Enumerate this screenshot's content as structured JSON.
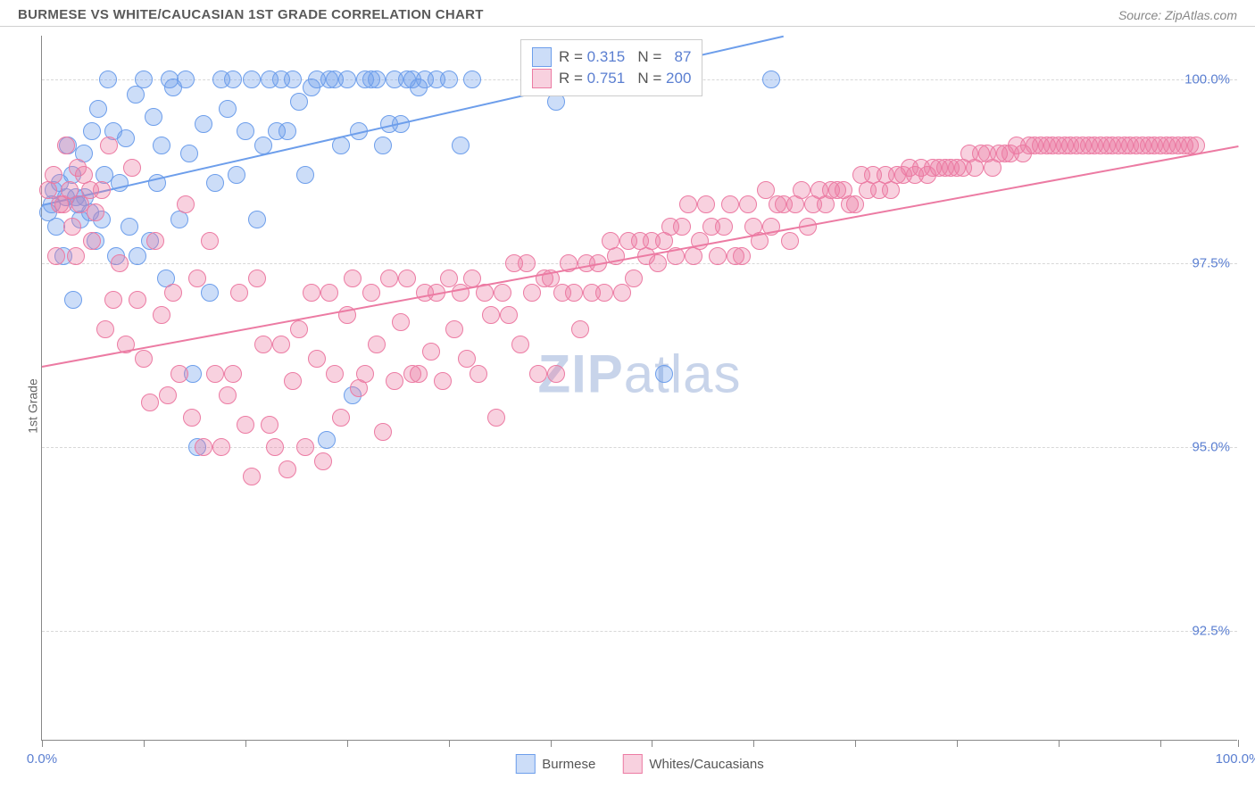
{
  "header": {
    "title": "BURMESE VS WHITE/CAUCASIAN 1ST GRADE CORRELATION CHART",
    "source": "Source: ZipAtlas.com"
  },
  "ylabel": "1st Grade",
  "watermark": {
    "part1": "ZIP",
    "part2": "atlas"
  },
  "chart": {
    "type": "scatter",
    "xlim": [
      0,
      100
    ],
    "ylim": [
      91,
      100.6
    ],
    "xtick_positions": [
      0,
      8.5,
      17,
      25.5,
      34,
      42.5,
      51,
      59.5,
      68,
      76.5,
      85,
      93.5,
      100
    ],
    "xtick_labels": {
      "0": "0.0%",
      "100": "100.0%"
    },
    "ytick_positions": [
      92.5,
      95.0,
      97.5,
      100.0
    ],
    "ytick_labels": [
      "92.5%",
      "95.0%",
      "97.5%",
      "100.0%"
    ],
    "grid_color": "#d8d8d8",
    "axis_color": "#888888",
    "background_color": "#ffffff",
    "label_color": "#5b7fd1",
    "marker_radius": 10,
    "marker_opacity": 0.45,
    "series": [
      {
        "name": "Burmese",
        "color": "#6d9eeb",
        "fill": "rgba(109,158,235,0.35)",
        "stroke": "#6d9eeb",
        "R": "0.315",
        "N": "87",
        "trend": {
          "x1": 0,
          "y1": 98.3,
          "x2": 62,
          "y2": 100.6
        },
        "points": [
          [
            0.5,
            98.2
          ],
          [
            0.8,
            98.3
          ],
          [
            1,
            98.5
          ],
          [
            1.2,
            98.0
          ],
          [
            1.5,
            98.6
          ],
          [
            1.8,
            97.6
          ],
          [
            2,
            98.4
          ],
          [
            2.2,
            99.1
          ],
          [
            2.5,
            98.7
          ],
          [
            2.6,
            97.0
          ],
          [
            2.8,
            98.4
          ],
          [
            3,
            98.3
          ],
          [
            3.2,
            98.1
          ],
          [
            3.5,
            99.0
          ],
          [
            3.6,
            98.4
          ],
          [
            4,
            98.2
          ],
          [
            4.2,
            99.3
          ],
          [
            4.5,
            97.8
          ],
          [
            4.7,
            99.6
          ],
          [
            5,
            98.1
          ],
          [
            5.2,
            98.7
          ],
          [
            5.5,
            100.0
          ],
          [
            6,
            99.3
          ],
          [
            6.2,
            97.6
          ],
          [
            6.5,
            98.6
          ],
          [
            7,
            99.2
          ],
          [
            7.3,
            98.0
          ],
          [
            7.8,
            99.8
          ],
          [
            8,
            97.6
          ],
          [
            8.5,
            100.0
          ],
          [
            9,
            97.8
          ],
          [
            9.3,
            99.5
          ],
          [
            9.6,
            98.6
          ],
          [
            10,
            99.1
          ],
          [
            10.4,
            97.3
          ],
          [
            10.7,
            100.0
          ],
          [
            11,
            99.9
          ],
          [
            11.5,
            98.1
          ],
          [
            12,
            100.0
          ],
          [
            12.3,
            99.0
          ],
          [
            12.6,
            96.0
          ],
          [
            13,
            95.0
          ],
          [
            13.5,
            99.4
          ],
          [
            14,
            97.1
          ],
          [
            14.5,
            98.6
          ],
          [
            15,
            100.0
          ],
          [
            15.5,
            99.6
          ],
          [
            16,
            100.0
          ],
          [
            16.3,
            98.7
          ],
          [
            17,
            99.3
          ],
          [
            17.5,
            100.0
          ],
          [
            18,
            98.1
          ],
          [
            18.5,
            99.1
          ],
          [
            19,
            100.0
          ],
          [
            19.6,
            99.3
          ],
          [
            20,
            100.0
          ],
          [
            20.5,
            99.3
          ],
          [
            21,
            100.0
          ],
          [
            21.5,
            99.7
          ],
          [
            22,
            98.7
          ],
          [
            22.5,
            99.9
          ],
          [
            23,
            100.0
          ],
          [
            23.8,
            95.1
          ],
          [
            24,
            100.0
          ],
          [
            24.5,
            100.0
          ],
          [
            25,
            99.1
          ],
          [
            25.5,
            100.0
          ],
          [
            26,
            95.7
          ],
          [
            26.5,
            99.3
          ],
          [
            27,
            100.0
          ],
          [
            27.5,
            100.0
          ],
          [
            28,
            100.0
          ],
          [
            28.5,
            99.1
          ],
          [
            29,
            99.4
          ],
          [
            29.5,
            100.0
          ],
          [
            30,
            99.4
          ],
          [
            30.5,
            100.0
          ],
          [
            31,
            100.0
          ],
          [
            31.5,
            99.9
          ],
          [
            32,
            100.0
          ],
          [
            33,
            100.0
          ],
          [
            34,
            100.0
          ],
          [
            35,
            99.1
          ],
          [
            36,
            100.0
          ],
          [
            43,
            99.7
          ],
          [
            52,
            96.0
          ],
          [
            61,
            100.0
          ]
        ]
      },
      {
        "name": "Whites/Caucasians",
        "color": "#ec7ba3",
        "fill": "rgba(236,123,163,0.35)",
        "stroke": "#ec7ba3",
        "R": "0.751",
        "N": "200",
        "trend": {
          "x1": 0,
          "y1": 96.1,
          "x2": 100,
          "y2": 99.1
        },
        "points": [
          [
            0.5,
            98.5
          ],
          [
            1,
            98.7
          ],
          [
            1.2,
            97.6
          ],
          [
            1.5,
            98.3
          ],
          [
            1.8,
            98.3
          ],
          [
            2,
            99.1
          ],
          [
            2.3,
            98.5
          ],
          [
            2.5,
            98.0
          ],
          [
            2.8,
            97.6
          ],
          [
            3,
            98.8
          ],
          [
            3.2,
            98.3
          ],
          [
            3.5,
            98.7
          ],
          [
            4,
            98.5
          ],
          [
            4.2,
            97.8
          ],
          [
            4.5,
            98.2
          ],
          [
            5,
            98.5
          ],
          [
            5.3,
            96.6
          ],
          [
            5.6,
            99.1
          ],
          [
            6,
            97.0
          ],
          [
            6.5,
            97.5
          ],
          [
            7,
            96.4
          ],
          [
            7.5,
            98.8
          ],
          [
            8,
            97.0
          ],
          [
            8.5,
            96.2
          ],
          [
            9,
            95.6
          ],
          [
            9.5,
            97.8
          ],
          [
            10,
            96.8
          ],
          [
            10.5,
            95.7
          ],
          [
            11,
            97.1
          ],
          [
            11.5,
            96.0
          ],
          [
            12,
            98.3
          ],
          [
            12.5,
            95.4
          ],
          [
            13,
            97.3
          ],
          [
            13.5,
            95.0
          ],
          [
            14,
            97.8
          ],
          [
            14.5,
            96.0
          ],
          [
            15,
            95.0
          ],
          [
            15.5,
            95.7
          ],
          [
            16,
            96.0
          ],
          [
            16.5,
            97.1
          ],
          [
            17,
            95.3
          ],
          [
            17.5,
            94.6
          ],
          [
            18,
            97.3
          ],
          [
            18.5,
            96.4
          ],
          [
            19,
            95.3
          ],
          [
            19.5,
            95.0
          ],
          [
            20,
            96.4
          ],
          [
            20.5,
            94.7
          ],
          [
            21,
            95.9
          ],
          [
            21.5,
            96.6
          ],
          [
            22,
            95.0
          ],
          [
            22.5,
            97.1
          ],
          [
            23,
            96.2
          ],
          [
            23.5,
            94.8
          ],
          [
            24,
            97.1
          ],
          [
            24.5,
            96.0
          ],
          [
            25,
            95.4
          ],
          [
            25.5,
            96.8
          ],
          [
            26,
            97.3
          ],
          [
            26.5,
            95.8
          ],
          [
            27,
            96.0
          ],
          [
            27.5,
            97.1
          ],
          [
            28,
            96.4
          ],
          [
            28.5,
            95.2
          ],
          [
            29,
            97.3
          ],
          [
            29.5,
            95.9
          ],
          [
            30,
            96.7
          ],
          [
            30.5,
            97.3
          ],
          [
            31,
            96.0
          ],
          [
            31.5,
            96.0
          ],
          [
            32,
            97.1
          ],
          [
            32.5,
            96.3
          ],
          [
            33,
            97.1
          ],
          [
            33.5,
            95.9
          ],
          [
            34,
            97.3
          ],
          [
            34.5,
            96.6
          ],
          [
            35,
            97.1
          ],
          [
            35.5,
            96.2
          ],
          [
            36,
            97.3
          ],
          [
            36.5,
            96.0
          ],
          [
            37,
            97.1
          ],
          [
            37.5,
            96.8
          ],
          [
            38,
            95.4
          ],
          [
            38.5,
            97.1
          ],
          [
            39,
            96.8
          ],
          [
            39.5,
            97.5
          ],
          [
            40,
            96.4
          ],
          [
            40.5,
            97.5
          ],
          [
            41,
            97.1
          ],
          [
            41.5,
            96.0
          ],
          [
            42,
            97.3
          ],
          [
            42.5,
            97.3
          ],
          [
            43,
            96.0
          ],
          [
            43.5,
            97.1
          ],
          [
            44,
            97.5
          ],
          [
            44.5,
            97.1
          ],
          [
            45,
            96.6
          ],
          [
            45.5,
            97.5
          ],
          [
            46,
            97.1
          ],
          [
            46.5,
            97.5
          ],
          [
            47,
            97.1
          ],
          [
            47.5,
            97.8
          ],
          [
            48,
            97.6
          ],
          [
            48.5,
            97.1
          ],
          [
            49,
            97.8
          ],
          [
            49.5,
            97.3
          ],
          [
            50,
            97.8
          ],
          [
            50.5,
            97.6
          ],
          [
            51,
            97.8
          ],
          [
            51.5,
            97.5
          ],
          [
            52,
            97.8
          ],
          [
            52.5,
            98.0
          ],
          [
            53,
            97.6
          ],
          [
            53.5,
            98.0
          ],
          [
            54,
            98.3
          ],
          [
            54.5,
            97.6
          ],
          [
            55,
            97.8
          ],
          [
            55.5,
            98.3
          ],
          [
            56,
            98.0
          ],
          [
            56.5,
            97.6
          ],
          [
            57,
            98.0
          ],
          [
            57.5,
            98.3
          ],
          [
            58,
            97.6
          ],
          [
            58.5,
            97.6
          ],
          [
            59,
            98.3
          ],
          [
            59.5,
            98.0
          ],
          [
            60,
            97.8
          ],
          [
            60.5,
            98.5
          ],
          [
            61,
            98.0
          ],
          [
            61.5,
            98.3
          ],
          [
            62,
            98.3
          ],
          [
            62.5,
            97.8
          ],
          [
            63,
            98.3
          ],
          [
            63.5,
            98.5
          ],
          [
            64,
            98.0
          ],
          [
            64.5,
            98.3
          ],
          [
            65,
            98.5
          ],
          [
            65.5,
            98.3
          ],
          [
            66,
            98.5
          ],
          [
            66.5,
            98.5
          ],
          [
            67,
            98.5
          ],
          [
            67.5,
            98.3
          ],
          [
            68,
            98.3
          ],
          [
            68.5,
            98.7
          ],
          [
            69,
            98.5
          ],
          [
            69.5,
            98.7
          ],
          [
            70,
            98.5
          ],
          [
            70.5,
            98.7
          ],
          [
            71,
            98.5
          ],
          [
            71.5,
            98.7
          ],
          [
            72,
            98.7
          ],
          [
            72.5,
            98.8
          ],
          [
            73,
            98.7
          ],
          [
            73.5,
            98.8
          ],
          [
            74,
            98.7
          ],
          [
            74.5,
            98.8
          ],
          [
            75,
            98.8
          ],
          [
            75.5,
            98.8
          ],
          [
            76,
            98.8
          ],
          [
            76.5,
            98.8
          ],
          [
            77,
            98.8
          ],
          [
            77.5,
            99.0
          ],
          [
            78,
            98.8
          ],
          [
            78.5,
            99.0
          ],
          [
            79,
            99.0
          ],
          [
            79.5,
            98.8
          ],
          [
            80,
            99.0
          ],
          [
            80.5,
            99.0
          ],
          [
            81,
            99.0
          ],
          [
            81.5,
            99.1
          ],
          [
            82,
            99.0
          ],
          [
            82.5,
            99.1
          ],
          [
            83,
            99.1
          ],
          [
            83.5,
            99.1
          ],
          [
            84,
            99.1
          ],
          [
            84.5,
            99.1
          ],
          [
            85,
            99.1
          ],
          [
            85.5,
            99.1
          ],
          [
            86,
            99.1
          ],
          [
            86.5,
            99.1
          ],
          [
            87,
            99.1
          ],
          [
            87.5,
            99.1
          ],
          [
            88,
            99.1
          ],
          [
            88.5,
            99.1
          ],
          [
            89,
            99.1
          ],
          [
            89.5,
            99.1
          ],
          [
            90,
            99.1
          ],
          [
            90.5,
            99.1
          ],
          [
            91,
            99.1
          ],
          [
            91.5,
            99.1
          ],
          [
            92,
            99.1
          ],
          [
            92.5,
            99.1
          ],
          [
            93,
            99.1
          ],
          [
            93.5,
            99.1
          ],
          [
            94,
            99.1
          ],
          [
            94.5,
            99.1
          ],
          [
            95,
            99.1
          ],
          [
            95.5,
            99.1
          ],
          [
            96,
            99.1
          ],
          [
            96.5,
            99.1
          ]
        ]
      }
    ]
  },
  "legend_box": {
    "rows": [
      {
        "swatch_fill": "rgba(109,158,235,0.35)",
        "swatch_border": "#6d9eeb",
        "r_label": "R = ",
        "r_val": "0.315",
        "n_label": "   N =   ",
        "n_val": "87"
      },
      {
        "swatch_fill": "rgba(236,123,163,0.35)",
        "swatch_border": "#ec7ba3",
        "r_label": "R = ",
        "r_val": "0.751",
        "n_label": "   N = ",
        "n_val": "200"
      }
    ]
  },
  "bottom_legend": [
    {
      "swatch_fill": "rgba(109,158,235,0.35)",
      "swatch_border": "#6d9eeb",
      "label": "Burmese"
    },
    {
      "swatch_fill": "rgba(236,123,163,0.35)",
      "swatch_border": "#ec7ba3",
      "label": "Whites/Caucasians"
    }
  ]
}
